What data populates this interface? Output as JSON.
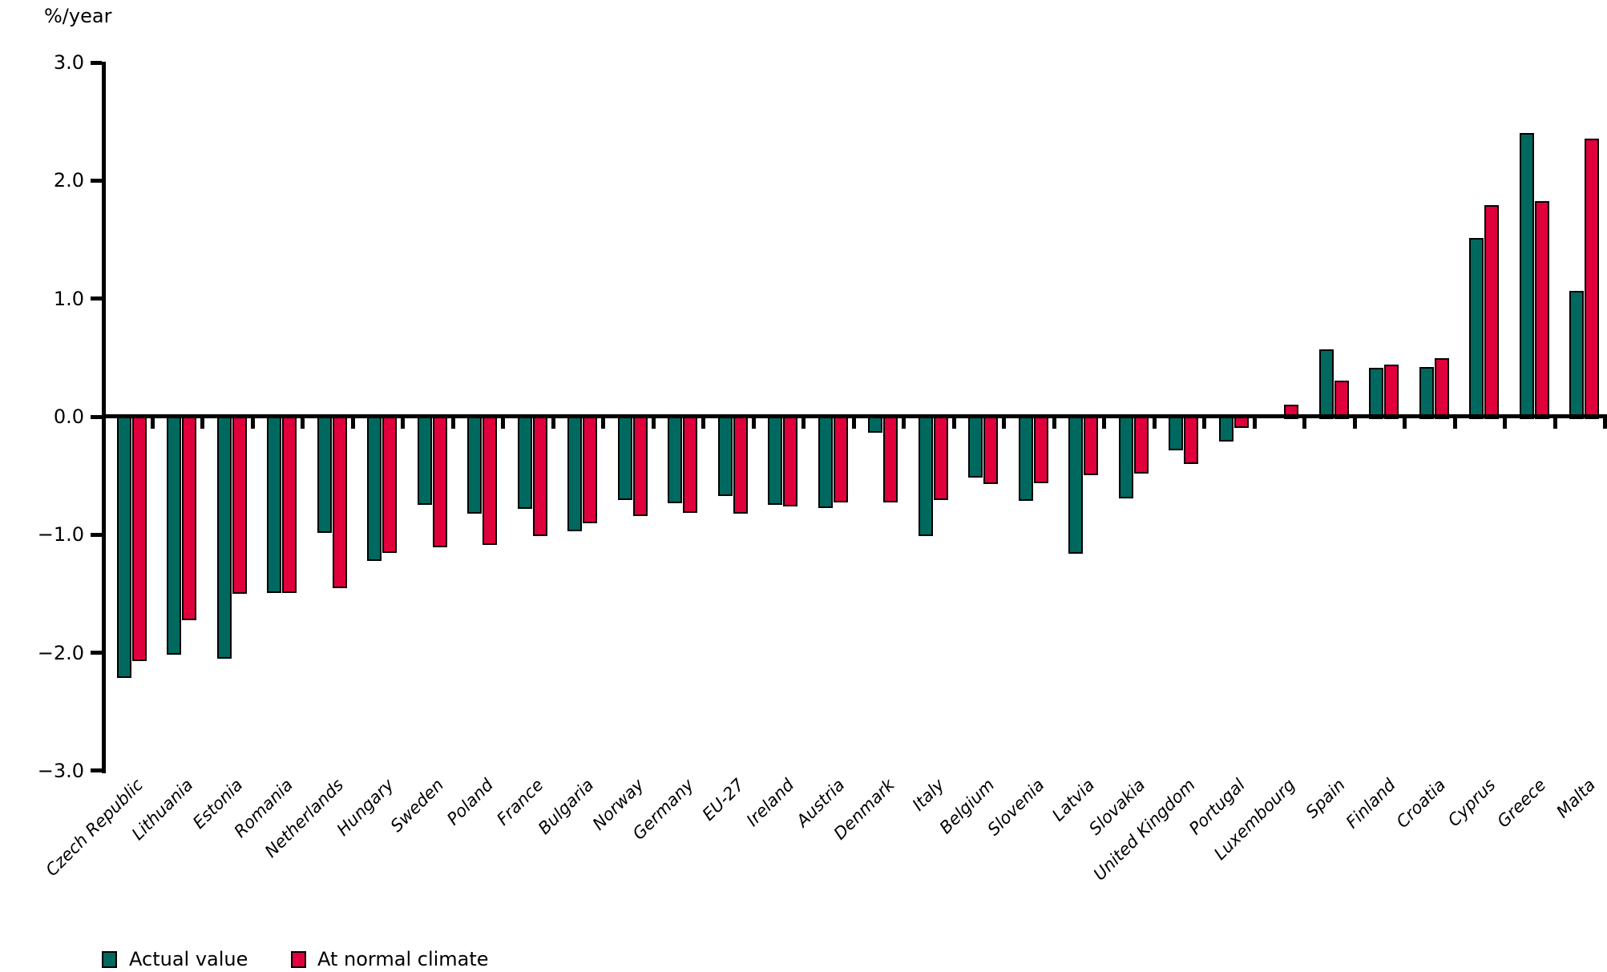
{
  "unit_label": "%/year",
  "y_axis": {
    "tick_labels": [
      "3.0",
      "2.0",
      "1.0",
      "0.0",
      "−1.0",
      "−2.0",
      "−3.0"
    ],
    "tick_values": [
      3,
      2,
      1,
      0,
      -1,
      -2,
      -3
    ],
    "min": -3.0,
    "max": 3.0
  },
  "legend": {
    "items": [
      {
        "label": "Actual value",
        "color": "#00695F"
      },
      {
        "label": "At normal climate",
        "color": "#E0003C"
      }
    ],
    "position": "bottom"
  },
  "colors": {
    "actual": "#00695F",
    "normal": "#E0003C",
    "axis": "#000000",
    "background": "#FFFFFF"
  },
  "chart_data": {
    "type": "bar",
    "title": "",
    "xlabel": "",
    "ylabel": "%/year",
    "ylim": [
      -3.0,
      3.0
    ],
    "grid": false,
    "legend_position": "bottom",
    "categories": [
      "Czech Republic",
      "Lithuania",
      "Estonia",
      "Romania",
      "Netherlands",
      "Hungary",
      "Sweden",
      "Poland",
      "France",
      "Bulgaria",
      "Norway",
      "Germany",
      "EU-27",
      "Ireland",
      "Austria",
      "Denmark",
      "Italy",
      "Belgium",
      "Slovenia",
      "Latvia",
      "Slovakia",
      "United Kingdom",
      "Portugal",
      "Luxembourg",
      "Spain",
      "Finland",
      "Croatia",
      "Cyprus",
      "Greece",
      "Malta"
    ],
    "series": [
      {
        "name": "Actual value",
        "color": "#00695F",
        "values": [
          -2.2,
          -2.0,
          -2.04,
          -1.48,
          -0.97,
          -1.21,
          -0.73,
          -0.81,
          -0.77,
          -0.96,
          -0.69,
          -0.72,
          -0.66,
          -0.73,
          -0.76,
          -0.12,
          -1.0,
          -0.5,
          -0.7,
          -1.15,
          -0.68,
          -0.27,
          -0.2,
          0.0,
          0.56,
          0.4,
          0.41,
          1.5,
          2.39,
          1.05
        ]
      },
      {
        "name": "At normal climate",
        "color": "#E0003C",
        "values": [
          -2.06,
          -1.71,
          -1.49,
          -1.48,
          -1.44,
          -1.14,
          -1.09,
          -1.07,
          -1.0,
          -0.89,
          -0.83,
          -0.8,
          -0.81,
          -0.75,
          -0.71,
          -0.71,
          -0.69,
          -0.56,
          -0.55,
          -0.48,
          -0.47,
          -0.39,
          -0.08,
          0.09,
          0.29,
          0.43,
          0.48,
          1.78,
          1.81,
          2.34
        ]
      }
    ]
  }
}
